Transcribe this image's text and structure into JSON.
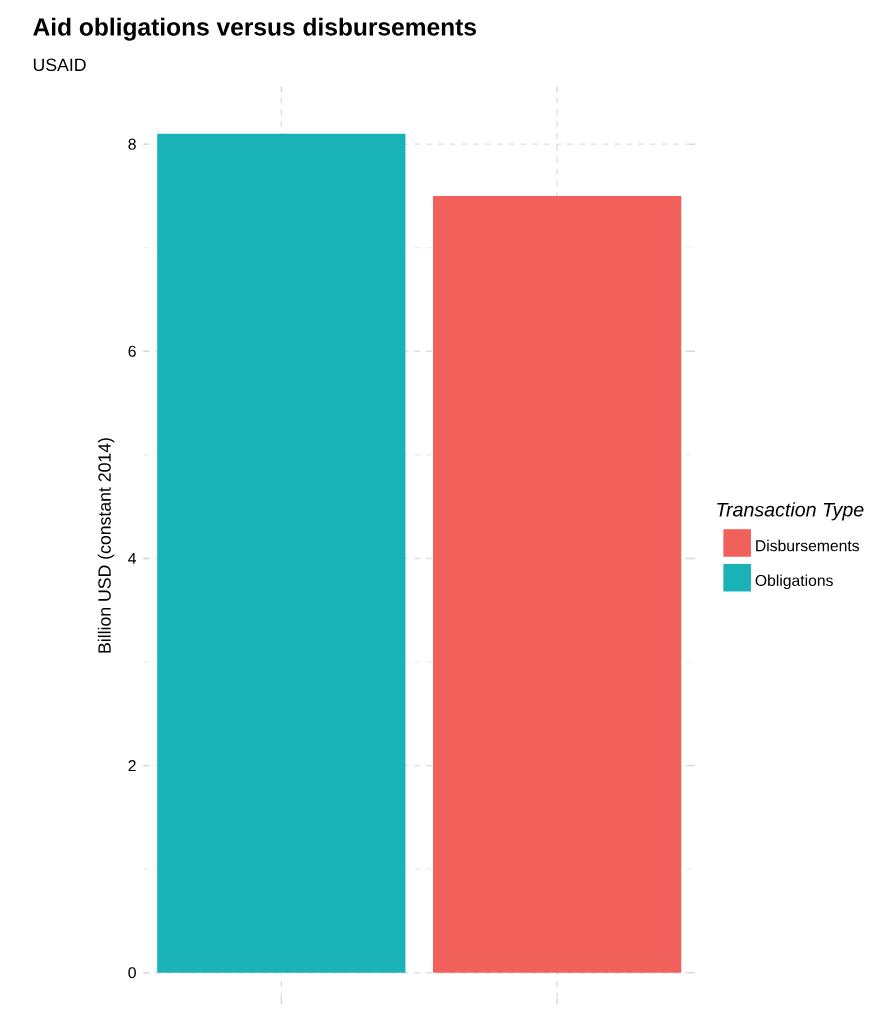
{
  "chart_data": {
    "type": "bar",
    "title": "Aid obligations versus disbursements",
    "subtitle": "USAID",
    "ylabel": "Billion USD (constant 2014)",
    "legend_title": "Transaction Type",
    "categories": [
      null,
      null
    ],
    "series": [
      {
        "name": "Disbursements",
        "color": "#f2605b",
        "values": [
          null,
          7.5
        ]
      },
      {
        "name": "Obligations",
        "color": "#19b3b7",
        "values": [
          8.1,
          null
        ]
      }
    ],
    "ylim": [
      -0.25,
      8.5
    ],
    "yticks": [
      0,
      2,
      4,
      6,
      8
    ],
    "grid": true,
    "legend": "right",
    "tick_labels": "y"
  }
}
